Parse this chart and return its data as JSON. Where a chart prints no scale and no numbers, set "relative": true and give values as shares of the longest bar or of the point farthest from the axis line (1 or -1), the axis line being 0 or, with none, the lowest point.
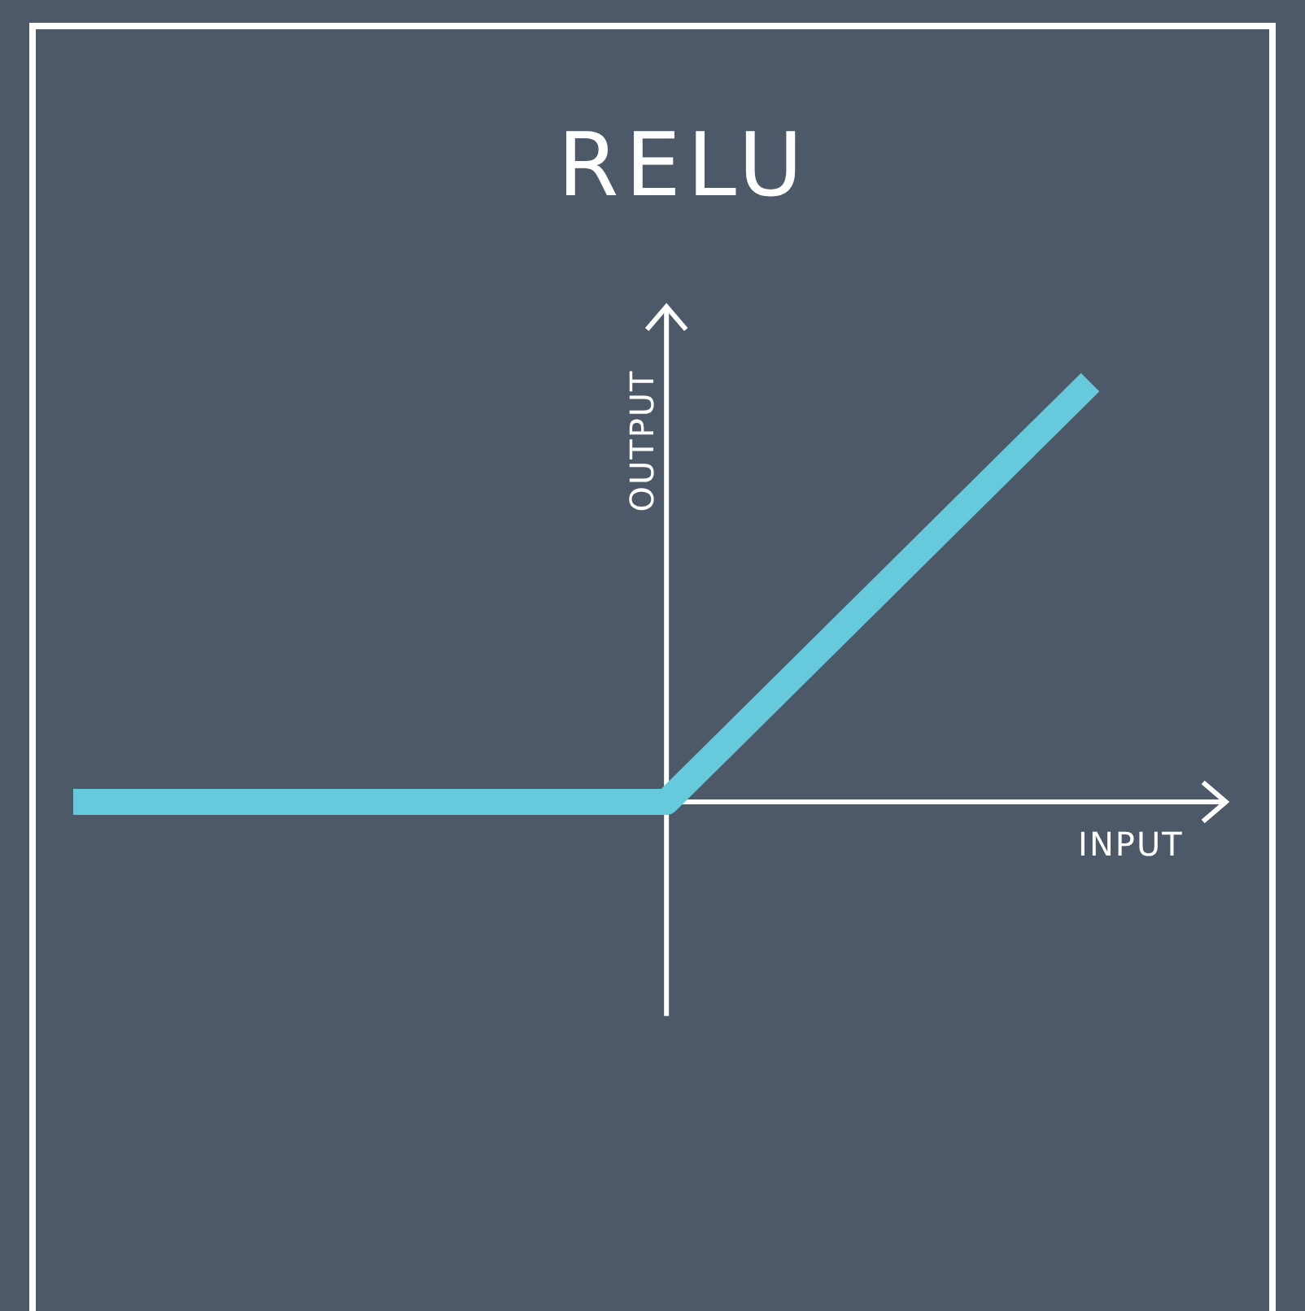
{
  "chart_data": {
    "type": "line",
    "title": "RELU",
    "xlabel": "INPUT",
    "ylabel": "OUTPUT",
    "relative": true,
    "categories": [
      null,
      null,
      null,
      null,
      null,
      null,
      null,
      null,
      null,
      null,
      null,
      null,
      null
    ],
    "series": [
      {
        "color": "#66c9dc",
        "values": [
          0,
          0,
          0,
          0,
          0,
          0,
          0,
          0,
          0.2,
          0.4,
          0.6,
          0.8,
          1
        ]
      }
    ]
  }
}
